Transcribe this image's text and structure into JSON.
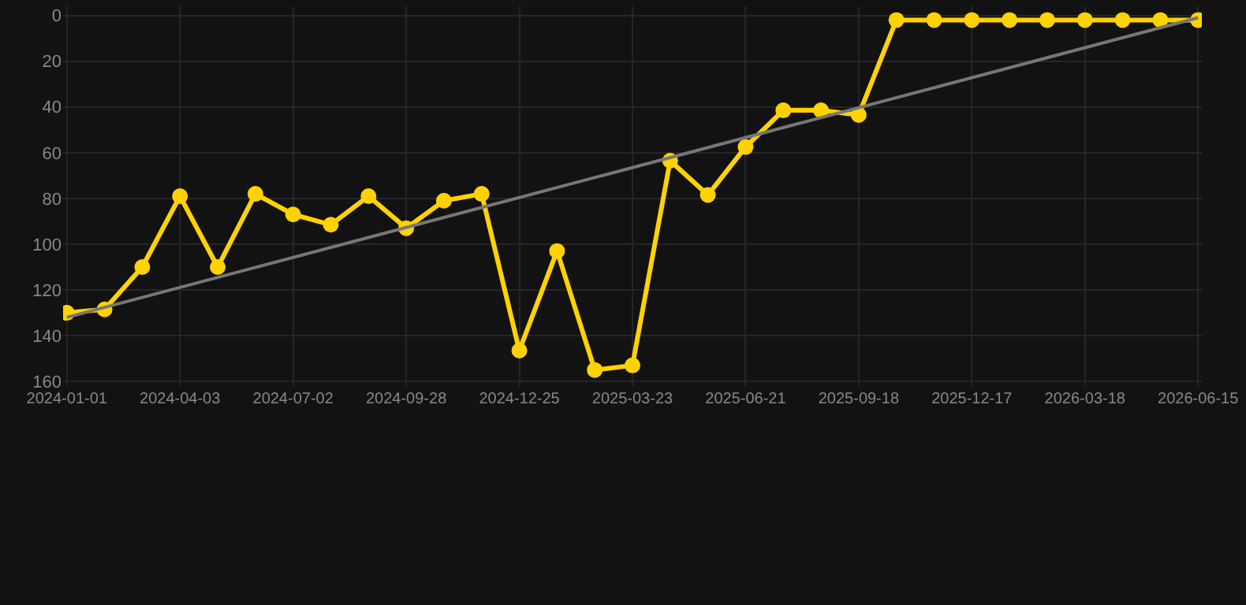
{
  "chart_data": {
    "type": "line",
    "categories": [
      "2024-01-01",
      null,
      null,
      "2024-04-03",
      null,
      null,
      "2024-07-02",
      null,
      null,
      "2024-09-28",
      null,
      null,
      "2024-12-25",
      null,
      null,
      "2025-03-23",
      null,
      null,
      "2025-06-21",
      null,
      null,
      "2025-09-18",
      null,
      null,
      "2025-12-17",
      null,
      null,
      "2026-03-18",
      null,
      null,
      "2026-06-15"
    ],
    "series": [
      {
        "color": "#ffd200",
        "values": [
          130,
          128.5,
          110,
          79,
          110,
          78,
          87,
          91.5,
          79,
          93,
          81,
          78,
          146.5,
          103,
          155,
          153,
          63.5,
          78.5,
          57.5,
          41.5,
          41.5,
          43.5,
          2,
          2,
          2,
          2,
          2,
          2,
          2,
          2,
          2
        ],
        "marker": "circle"
      },
      {
        "color": "#777777",
        "values": [
          132,
          null,
          null,
          null,
          null,
          null,
          null,
          null,
          null,
          null,
          null,
          null,
          null,
          null,
          null,
          null,
          null,
          null,
          null,
          null,
          null,
          null,
          null,
          null,
          null,
          null,
          null,
          null,
          null,
          null,
          1
        ],
        "marker": "none"
      }
    ],
    "ylim": [
      162,
      -4
    ],
    "yticks": [
      0,
      20,
      40,
      60,
      80,
      100,
      120,
      140,
      160
    ],
    "grid": true
  }
}
